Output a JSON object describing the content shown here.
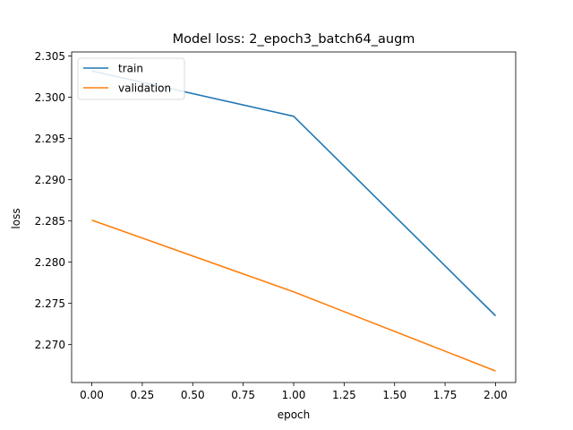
{
  "chart_data": {
    "type": "line",
    "title": "Model loss: 2_epoch3_batch64_augm",
    "xlabel": "epoch",
    "ylabel": "loss",
    "x": [
      0,
      1,
      2
    ],
    "xlim": [
      -0.1,
      2.1
    ],
    "ylim": [
      2.2654,
      2.3055
    ],
    "xticks": [
      0,
      0.25,
      0.5,
      0.75,
      1.0,
      1.25,
      1.5,
      1.75,
      2.0
    ],
    "xtick_labels": [
      "0.00",
      "0.25",
      "0.50",
      "0.75",
      "1.00",
      "1.25",
      "1.50",
      "1.75",
      "2.00"
    ],
    "yticks": [
      2.27,
      2.275,
      2.28,
      2.285,
      2.29,
      2.295,
      2.3,
      2.305
    ],
    "ytick_labels": [
      "2.270",
      "2.275",
      "2.280",
      "2.285",
      "2.290",
      "2.295",
      "2.300",
      "2.305"
    ],
    "legend": "top-left",
    "grid": false,
    "series": [
      {
        "name": "train",
        "values": [
          2.3032,
          2.2977,
          2.2735
        ],
        "color": "#1f77b4"
      },
      {
        "name": "validation",
        "values": [
          2.2851,
          2.2764,
          2.2668
        ],
        "color": "#ff7f0e"
      }
    ]
  }
}
